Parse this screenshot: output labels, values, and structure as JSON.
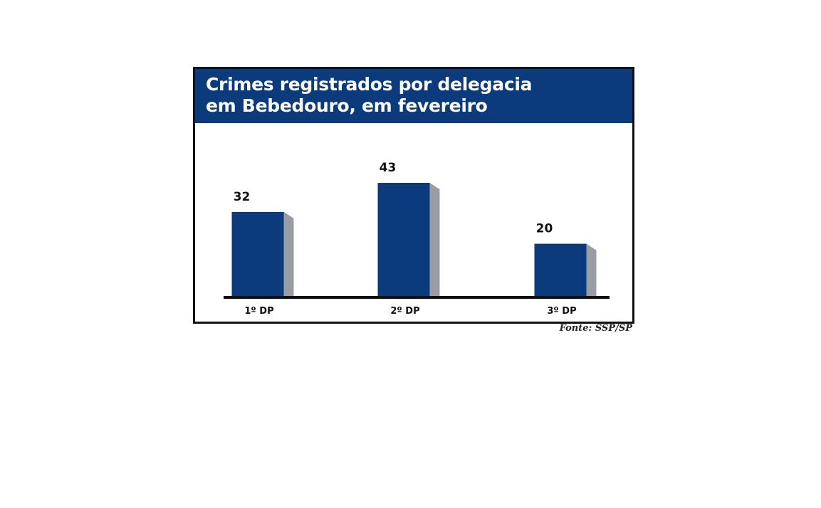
{
  "chart_data": {
    "type": "bar",
    "title_lines": [
      "Crimes registrados por delegacia",
      "em Bebedouro, em fevereiro"
    ],
    "categories": [
      "1º DP",
      "2º DP",
      "3º DP"
    ],
    "values": [
      32,
      43,
      20
    ],
    "ylim": [
      0,
      43
    ],
    "grid": false,
    "data_labels": true
  },
  "source": "Fonte: SSP/SP",
  "colors": {
    "bar": "#0b3b7c",
    "bar_shade": "#9a9da4",
    "title_bg": "#0b3b7c",
    "baseline": "#111111"
  }
}
